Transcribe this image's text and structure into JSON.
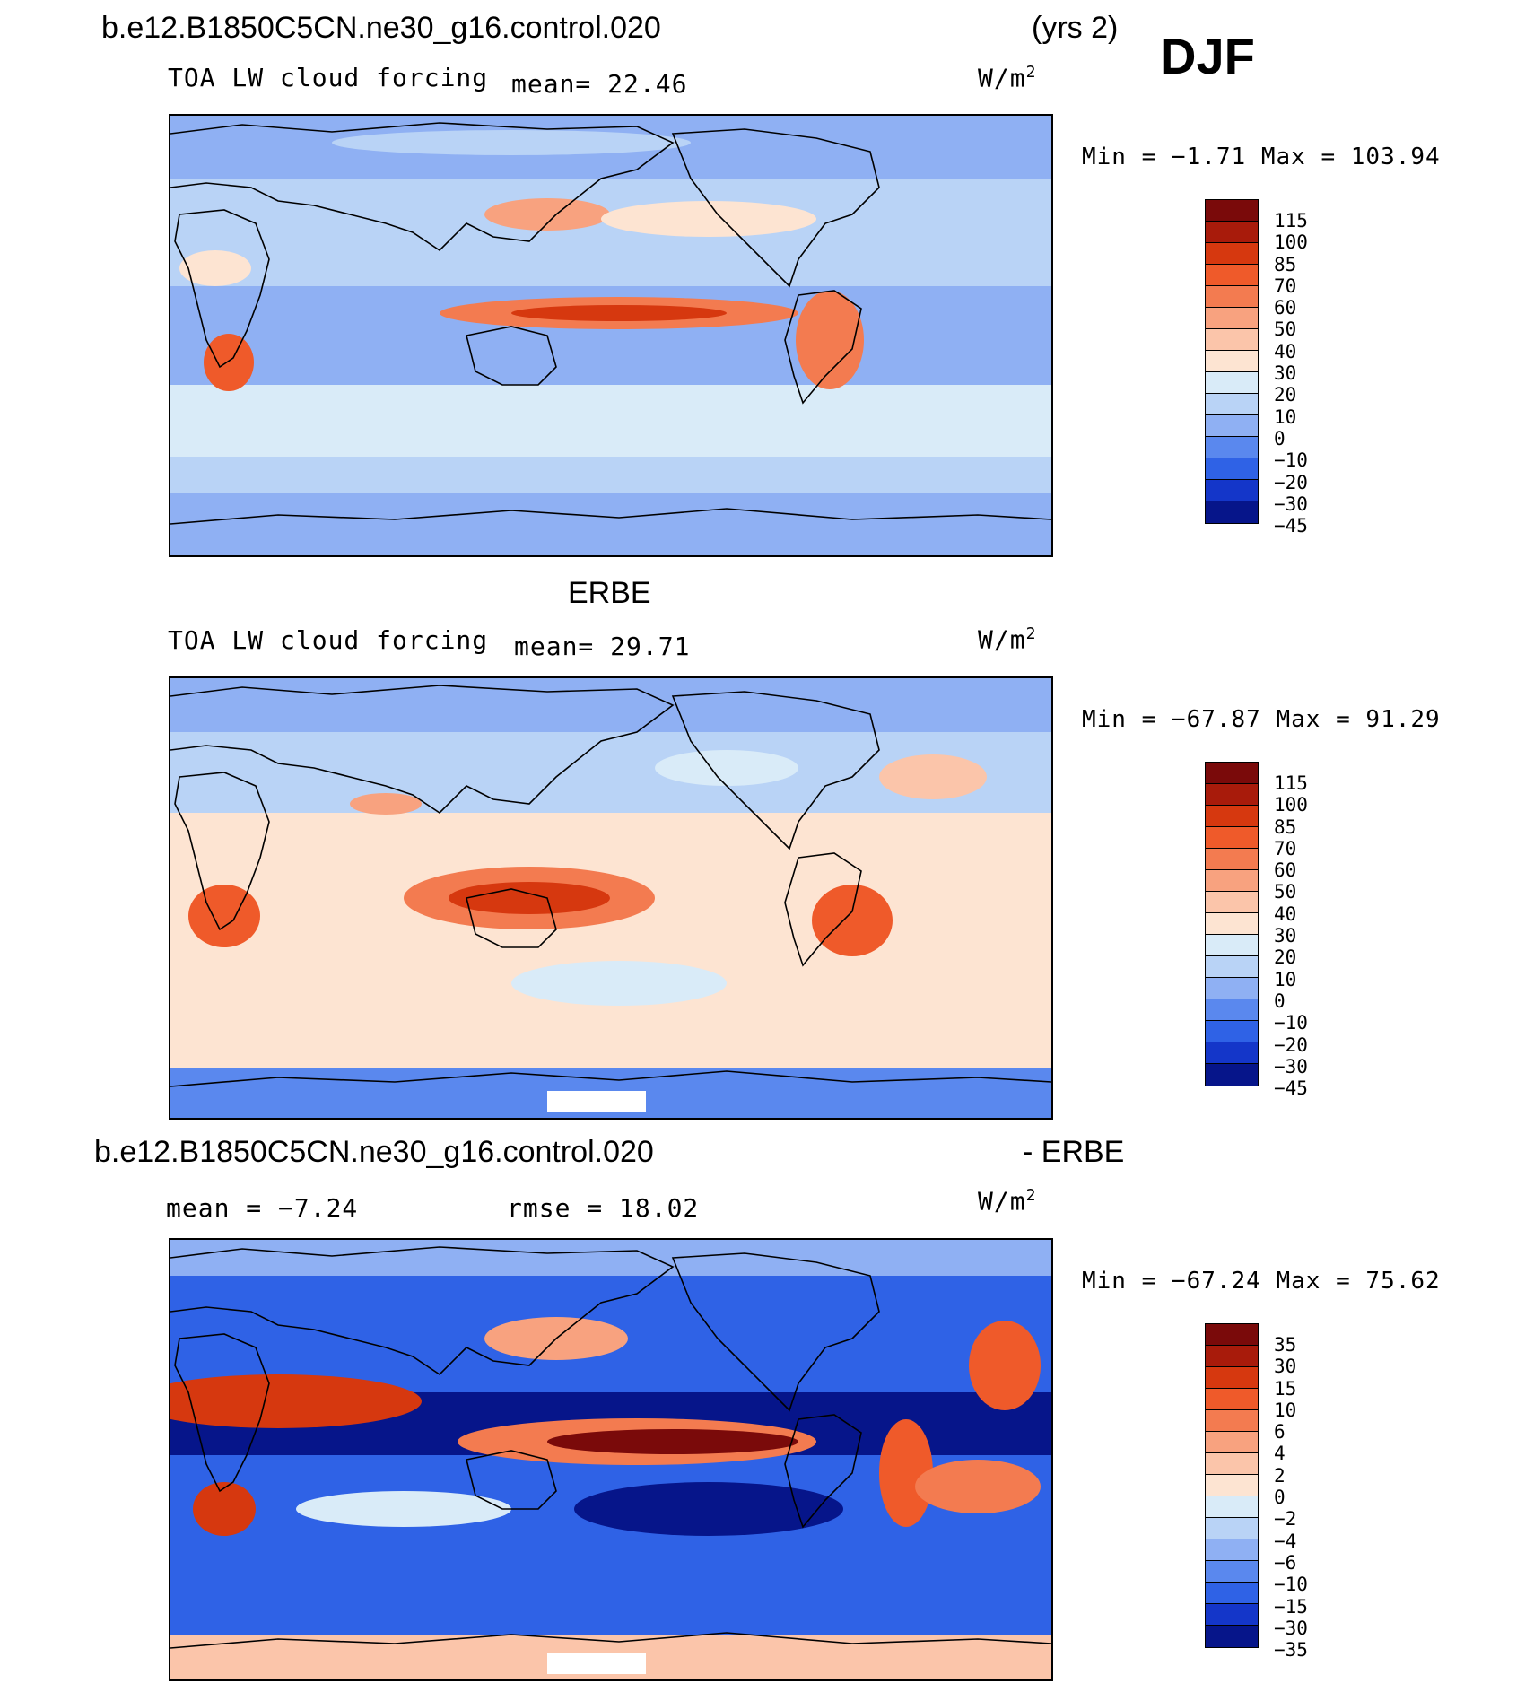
{
  "header": {
    "case": "b.e12.B1850C5CN.ne30_g16.control.020",
    "years": "(yrs 2)",
    "season": "DJF"
  },
  "panels": [
    {
      "id": "model",
      "title": "",
      "variable": "TOA LW cloud forcing",
      "stat_text": "mean=  22.46",
      "units": "W/m",
      "units_sup": "2",
      "minmax": "Min =  −1.71 Max = 103.94",
      "levels": [
        "115",
        "100",
        "85",
        "70",
        "60",
        "50",
        "40",
        "30",
        "20",
        "10",
        "0",
        "−10",
        "−20",
        "−30",
        "−45"
      ]
    },
    {
      "id": "obs",
      "title": "ERBE",
      "variable": "TOA LW cloud forcing",
      "stat_text": "mean=  29.71",
      "units": "W/m",
      "units_sup": "2",
      "minmax": "Min = −67.87 Max =  91.29",
      "levels": [
        "115",
        "100",
        "85",
        "70",
        "60",
        "50",
        "40",
        "30",
        "20",
        "10",
        "0",
        "−10",
        "−20",
        "−30",
        "−45"
      ]
    },
    {
      "id": "diff",
      "title_left": "b.e12.B1850C5CN.ne30_g16.control.020",
      "title_right": "- ERBE",
      "stat_text": "mean =  −7.24",
      "rmse_text": "rmse =  18.02",
      "units": "W/m",
      "units_sup": "2",
      "minmax": "Min = −67.24 Max =  75.62",
      "levels": [
        "35",
        "30",
        "15",
        "10",
        "6",
        "4",
        "2",
        "0",
        "−2",
        "−4",
        "−6",
        "−10",
        "−15",
        "−30",
        "−35"
      ]
    }
  ],
  "colorbar_colors": [
    "#7a0a0a",
    "#a81b0b",
    "#d6380f",
    "#ef5a2a",
    "#f37b50",
    "#f8a27f",
    "#fbc5aa",
    "#fde4d2",
    "#d9ebf8",
    "#b9d3f6",
    "#8fb0f3",
    "#5a88ee",
    "#2f62e6",
    "#1436c9",
    "#06158a"
  ],
  "map_palette": {
    "land_line": "#000000",
    "missing": "#ffffff"
  }
}
